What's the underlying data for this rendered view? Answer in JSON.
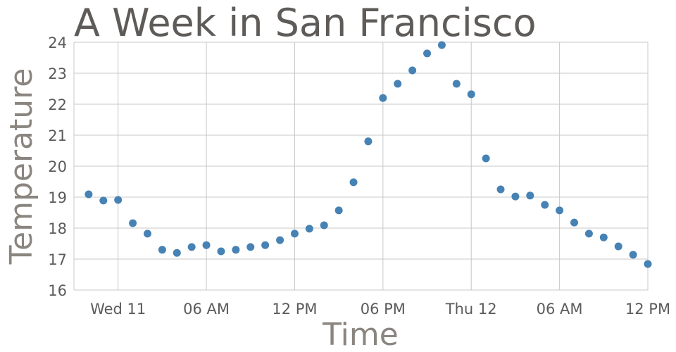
{
  "chart_data": {
    "type": "scatter",
    "title": "A Week in San Francisco",
    "xlabel": "Time",
    "ylabel": "Temperature",
    "ylim": [
      16,
      24
    ],
    "yticks": [
      16,
      17,
      18,
      19,
      20,
      21,
      22,
      23,
      24
    ],
    "xticks": [
      {
        "x": "Wed 11 00:00",
        "label": "Wed 11"
      },
      {
        "x": "Wed 11 06:00",
        "label": "06 AM"
      },
      {
        "x": "Wed 11 12:00",
        "label": "12 PM"
      },
      {
        "x": "Wed 11 18:00",
        "label": "06 PM"
      },
      {
        "x": "Thu 12 00:00",
        "label": "Thu 12"
      },
      {
        "x": "Thu 12 06:00",
        "label": "06 AM"
      },
      {
        "x": "Thu 12 12:00",
        "label": "12 PM"
      }
    ],
    "xlim": [
      "Tue 10 21:00",
      "Thu 12 12:00"
    ],
    "grid": true,
    "marker_color": "#4682b4",
    "x": [
      "Tue 10 22:00",
      "Tue 10 23:00",
      "Wed 11 00:00",
      "Wed 11 01:00",
      "Wed 11 02:00",
      "Wed 11 03:00",
      "Wed 11 04:00",
      "Wed 11 05:00",
      "Wed 11 06:00",
      "Wed 11 07:00",
      "Wed 11 08:00",
      "Wed 11 09:00",
      "Wed 11 10:00",
      "Wed 11 11:00",
      "Wed 11 12:00",
      "Wed 11 13:00",
      "Wed 11 14:00",
      "Wed 11 15:00",
      "Wed 11 16:00",
      "Wed 11 17:00",
      "Wed 11 18:00",
      "Wed 11 19:00",
      "Wed 11 20:00",
      "Wed 11 21:00",
      "Wed 11 22:00",
      "Wed 11 23:00",
      "Thu 12 00:00",
      "Thu 12 01:00",
      "Thu 12 02:00",
      "Thu 12 03:00",
      "Thu 12 04:00",
      "Thu 12 05:00",
      "Thu 12 06:00",
      "Thu 12 07:00",
      "Thu 12 08:00",
      "Thu 12 09:00",
      "Thu 12 10:00",
      "Thu 12 11:00",
      "Thu 12 12:00"
    ],
    "y": [
      19.09,
      18.89,
      18.91,
      18.16,
      17.82,
      17.3,
      17.2,
      17.39,
      17.45,
      17.25,
      17.3,
      17.39,
      17.45,
      17.61,
      17.82,
      17.98,
      18.09,
      18.57,
      19.48,
      20.8,
      22.2,
      22.66,
      23.09,
      23.64,
      23.91,
      22.66,
      22.32,
      20.25,
      19.25,
      19.02,
      19.05,
      18.75,
      18.57,
      18.18,
      17.82,
      17.7,
      17.41,
      17.14,
      16.84
    ]
  }
}
